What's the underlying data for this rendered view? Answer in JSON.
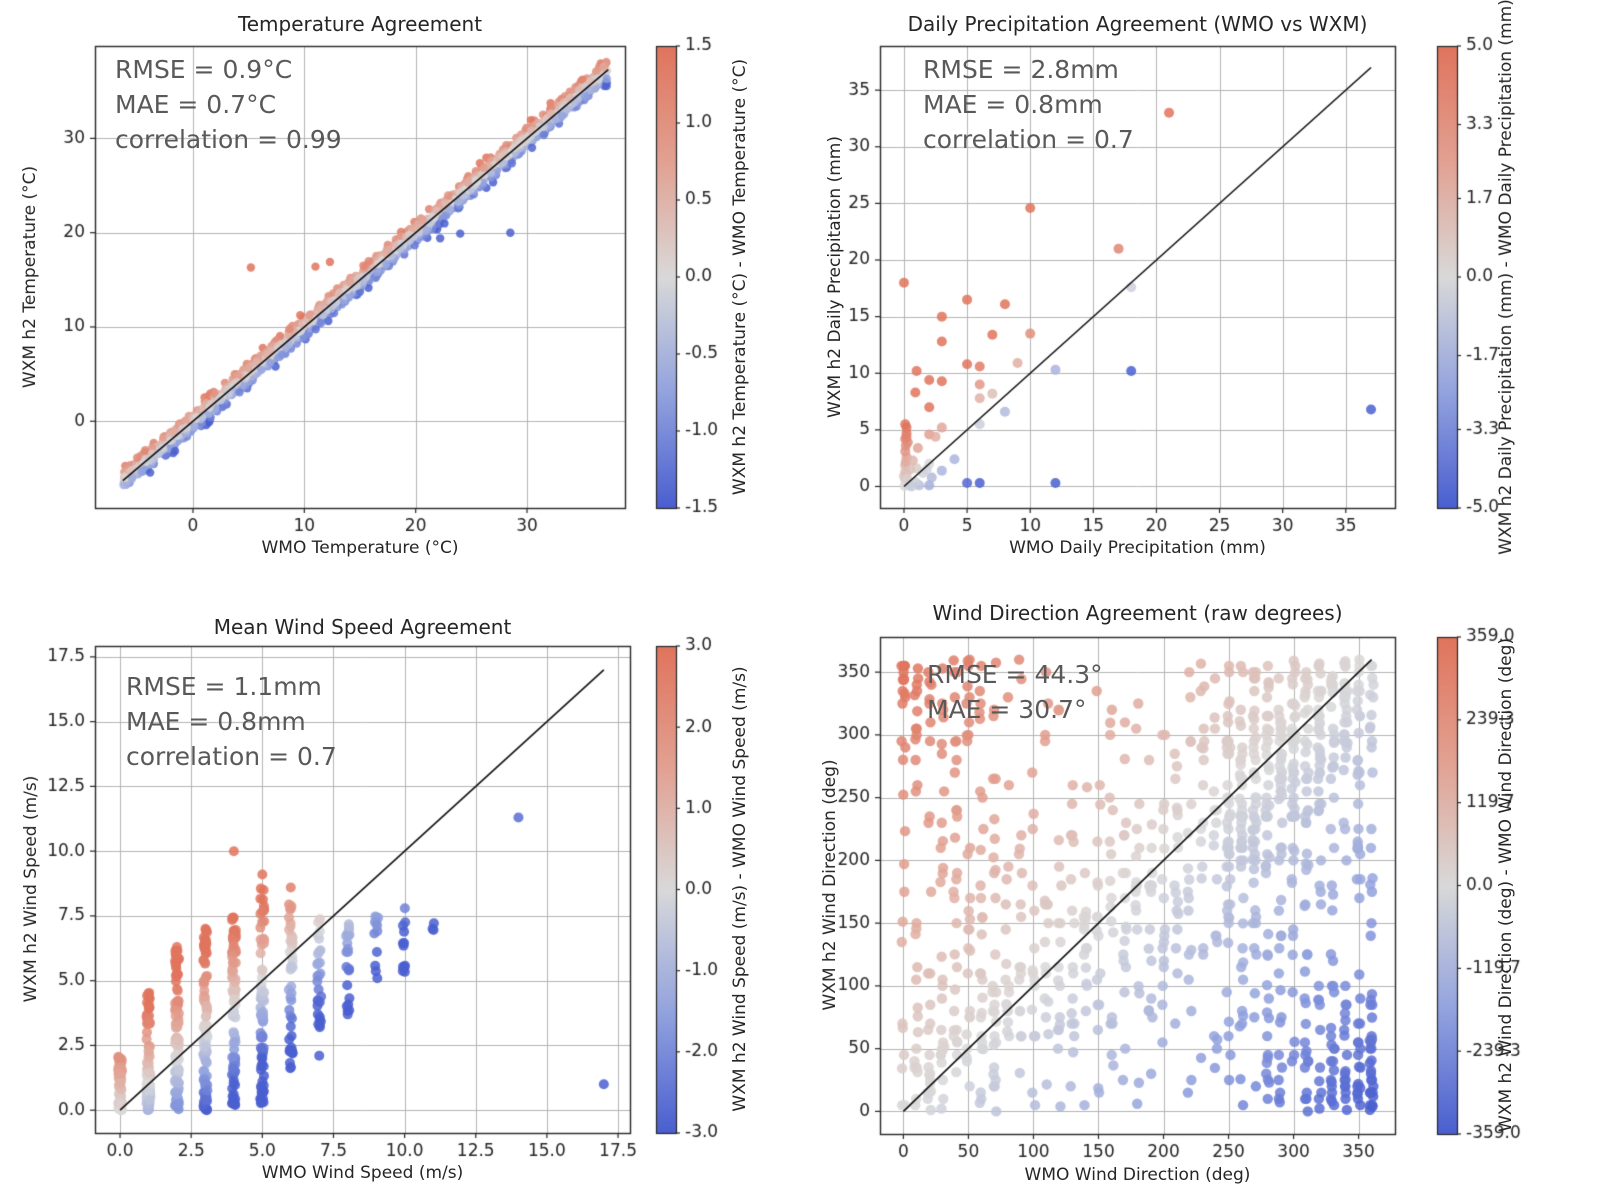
{
  "figure": {
    "background": "#ffffff"
  },
  "colormap": {
    "stops": [
      "#4a5fd0",
      "#93a3de",
      "#d9d9d9",
      "#e2a192",
      "#e0745d"
    ],
    "point_alpha": 0.85
  },
  "chart_data": [
    {
      "type": "scatter",
      "title": "Temperature Agreement",
      "stats": "RMSE = 0.9°C\nMAE = 0.7°C\ncorrelation = 0.99",
      "xlabel": "WMO Temperature (°C)",
      "ylabel": "WXM h2 Temperature (°C)",
      "xlim": [
        -8.8,
        38.8
      ],
      "ylim": [
        -9.2,
        39.8
      ],
      "xticks": {
        "values": [
          0,
          10,
          20,
          30
        ],
        "labels": [
          "0",
          "10",
          "20",
          "30"
        ]
      },
      "yticks": {
        "values": [
          0,
          10,
          20,
          30
        ],
        "labels": [
          "0",
          "10",
          "20",
          "30"
        ]
      },
      "identity_line": [
        [
          -6.3,
          -6.3
        ],
        [
          37.3,
          37.3
        ]
      ],
      "marker_radius": 4.2,
      "colorbar": {
        "vmin": -1.5,
        "vmax": 1.5,
        "tick_values": [
          1.5,
          1.0,
          0.5,
          0.0,
          -0.5,
          -1.0,
          -1.5
        ],
        "tick_labels": [
          "1.5",
          "1.0",
          "0.5",
          "0.0",
          "-0.5",
          "-1.0",
          "-1.5"
        ],
        "label": "WXM h2 Temperature (°C) - WMO Temperature (°C)"
      },
      "points": {
        "mode": "band",
        "seed": 11,
        "n": 2200,
        "x_min": -6.3,
        "x_max": 37.2,
        "noise_sd": 0.55,
        "noise_clip": 1.6,
        "outliers": [
          [
            5.2,
            16.3
          ],
          [
            11.0,
            16.4
          ],
          [
            12.3,
            16.9
          ],
          [
            28.5,
            20.0
          ],
          [
            22.2,
            19.4
          ],
          [
            24.0,
            19.9
          ]
        ]
      }
    },
    {
      "type": "scatter",
      "title": "Daily Precipitation Agreement (WMO vs WXM)",
      "stats": "RMSE = 2.8mm\nMAE = 0.8mm\ncorrelation = 0.7",
      "xlabel": "WMO Daily Precipitation (mm)",
      "ylabel": "WXM h2 Daily Precipitation (mm)",
      "xlim": [
        -1.9,
        38.9
      ],
      "ylim": [
        -1.9,
        38.9
      ],
      "xticks": {
        "values": [
          0,
          5,
          10,
          15,
          20,
          25,
          30,
          35
        ],
        "labels": [
          "0",
          "5",
          "10",
          "15",
          "20",
          "25",
          "30",
          "35"
        ]
      },
      "yticks": {
        "values": [
          0,
          5,
          10,
          15,
          20,
          25,
          30,
          35
        ],
        "labels": [
          "0",
          "5",
          "10",
          "15",
          "20",
          "25",
          "30",
          "35"
        ]
      },
      "identity_line": [
        [
          0,
          0
        ],
        [
          37,
          37
        ]
      ],
      "marker_radius": 5.0,
      "colorbar": {
        "vmin": -5.0,
        "vmax": 5.0,
        "tick_values": [
          5.0,
          3.3,
          1.7,
          0.0,
          -1.7,
          -3.3,
          -5.0
        ],
        "tick_labels": [
          "5.0",
          "3.3",
          "1.7",
          "0.0",
          "-1.7",
          "-3.3",
          "-5.0"
        ],
        "label": "WXM h2 Daily Precipitation (mm) - WMO Daily Precipitation (mm)"
      },
      "points": {
        "mode": "explicit",
        "xy": [
          [
            0,
            18
          ],
          [
            21,
            33
          ],
          [
            10,
            24.6
          ],
          [
            17,
            21
          ],
          [
            5,
            16.5
          ],
          [
            8,
            16.1
          ],
          [
            3,
            15
          ],
          [
            3,
            12.8
          ],
          [
            7,
            13.4
          ],
          [
            10,
            13.5
          ],
          [
            5,
            10.8
          ],
          [
            6,
            10.6
          ],
          [
            9,
            10.9
          ],
          [
            1,
            10.2
          ],
          [
            2,
            9.4
          ],
          [
            3,
            9.3
          ],
          [
            0.9,
            8.3
          ],
          [
            2,
            7
          ],
          [
            18,
            17.6
          ],
          [
            12,
            10.3
          ],
          [
            18,
            10.2
          ],
          [
            37,
            6.8
          ],
          [
            6,
            9
          ],
          [
            6,
            7.8
          ],
          [
            7,
            8.2
          ],
          [
            8,
            6.6
          ],
          [
            6,
            5.5
          ],
          [
            3,
            5.2
          ],
          [
            0.2,
            5.2
          ],
          [
            2,
            4.6
          ],
          [
            2.5,
            4.4
          ],
          [
            4,
            2.4
          ],
          [
            3,
            1.4
          ],
          [
            2,
            2
          ],
          [
            1.1,
            3.4
          ],
          [
            1,
            1.6
          ],
          [
            1.5,
            1.2
          ],
          [
            2.2,
            0.8
          ],
          [
            5,
            0.3
          ],
          [
            6,
            0.3
          ],
          [
            12,
            0.3
          ],
          [
            2,
            0.1
          ],
          [
            1.2,
            0.1
          ],
          [
            0.9,
            0.4
          ],
          [
            0.3,
            0.2
          ],
          [
            0.1,
            0.6
          ],
          [
            0,
            0.9
          ],
          [
            0.2,
            1.1
          ],
          [
            0.1,
            1.9
          ],
          [
            0.2,
            2.6
          ],
          [
            0.1,
            3.1
          ],
          [
            0.15,
            3.6
          ],
          [
            0.1,
            4.2
          ],
          [
            0.2,
            4.7
          ],
          [
            0.05,
            0.05
          ],
          [
            0.4,
            0.1
          ],
          [
            0.6,
            0
          ],
          [
            0.3,
            3.9
          ],
          [
            0.5,
            1.5
          ],
          [
            0.15,
            2.2
          ],
          [
            0.1,
            1.3
          ],
          [
            0.25,
            0.7
          ],
          [
            0.2,
            4.4
          ],
          [
            0.1,
            5.5
          ],
          [
            1.8,
            1.5
          ],
          [
            0.7,
            2.3
          ]
        ]
      }
    },
    {
      "type": "scatter",
      "title": "Mean Wind Speed Agreement",
      "stats": "RMSE = 1.1mm\nMAE = 0.8mm\ncorrelation = 0.7",
      "xlabel": "WMO Wind Speed (m/s)",
      "ylabel": "WXM h2 Wind Speed (m/s)",
      "xlim": [
        -0.88,
        17.92
      ],
      "ylim": [
        -0.88,
        17.92
      ],
      "xticks": {
        "values": [
          0,
          2.5,
          5,
          7.5,
          10,
          12.5,
          15,
          17.5
        ],
        "labels": [
          "0.0",
          "2.5",
          "5.0",
          "7.5",
          "10.0",
          "12.5",
          "15.0",
          "17.5"
        ]
      },
      "yticks": {
        "values": [
          0,
          2.5,
          5,
          7.5,
          10,
          12.5,
          15,
          17.5
        ],
        "labels": [
          "0.0",
          "2.5",
          "5.0",
          "7.5",
          "10.0",
          "12.5",
          "15.0",
          "17.5"
        ]
      },
      "identity_line": [
        [
          0,
          0
        ],
        [
          17,
          17
        ]
      ],
      "marker_radius": 5.0,
      "colorbar": {
        "vmin": -3.0,
        "vmax": 3.0,
        "tick_values": [
          3.0,
          2.0,
          1.0,
          0.0,
          -1.0,
          -2.0,
          -3.0
        ],
        "tick_labels": [
          "3.0",
          "2.0",
          "1.0",
          "0.0",
          "-1.0",
          "-2.0",
          "-3.0"
        ],
        "label": "WXM h2 Wind Speed (m/s) - WMO Wind Speed (m/s)"
      },
      "points": {
        "mode": "columns",
        "seed": 23,
        "x_jitter": 0.07,
        "skew": 1.3,
        "columns": [
          [
            0,
            55,
            0,
            2.1
          ],
          [
            1,
            85,
            0,
            4.6
          ],
          [
            2,
            95,
            0,
            6.2
          ],
          [
            3,
            95,
            0,
            7
          ],
          [
            4,
            85,
            0.2,
            7.5
          ],
          [
            5,
            75,
            0.2,
            8.8
          ],
          [
            6,
            45,
            1.6,
            8
          ],
          [
            7,
            28,
            3.2,
            7.4
          ],
          [
            8,
            20,
            3.8,
            7.6
          ],
          [
            9,
            12,
            5,
            7.6
          ],
          [
            10,
            12,
            5.3,
            7.8
          ],
          [
            11,
            3,
            6.9,
            7.3
          ]
        ],
        "outliers": [
          [
            4,
            10
          ],
          [
            5,
            9.1
          ],
          [
            6,
            8.6
          ],
          [
            14,
            11.3
          ],
          [
            17,
            1
          ],
          [
            8,
            3.7
          ],
          [
            7,
            2.1
          ],
          [
            2,
            6.3
          ],
          [
            1,
            4.5
          ],
          [
            3,
            7
          ]
        ]
      }
    },
    {
      "type": "scatter",
      "title": "Wind Direction Agreement (raw degrees)",
      "stats": "RMSE = 44.3°\nMAE = 30.7°",
      "xlabel": "WMO Wind Direction (deg)",
      "ylabel": "WXM h2 Wind Direction (deg)",
      "xlim": [
        -18,
        378
      ],
      "ylim": [
        -18,
        378
      ],
      "xticks": {
        "values": [
          0,
          50,
          100,
          150,
          200,
          250,
          300,
          350
        ],
        "labels": [
          "0",
          "50",
          "100",
          "150",
          "200",
          "250",
          "300",
          "350"
        ]
      },
      "yticks": {
        "values": [
          0,
          50,
          100,
          150,
          200,
          250,
          300,
          350
        ],
        "labels": [
          "0",
          "50",
          "100",
          "150",
          "200",
          "250",
          "300",
          "350"
        ]
      },
      "identity_line": [
        [
          0,
          0
        ],
        [
          360,
          360
        ]
      ],
      "marker_radius": 5.2,
      "colorbar": {
        "vmin": -359.0,
        "vmax": 359.0,
        "tick_values": [
          359.0,
          239.3,
          119.7,
          0.0,
          -119.7,
          -239.3,
          -359.0
        ],
        "tick_labels": [
          "359.0",
          "239.3",
          "119.7",
          "0.0",
          "-119.7",
          "-239.3",
          "-359.0"
        ],
        "label": "WXM h2 Wind Direction (deg) - WMO Wind Direction (deg)"
      },
      "points": {
        "mode": "wrap_mixture",
        "seed": 7,
        "x_step": 10,
        "x_max": 360,
        "frac_diag": 0.5,
        "diag_sd": 50,
        "snap5_prob": 0.65,
        "x_jitter": 1.5,
        "groups": [
          [
            0,
            70,
            28
          ],
          [
            80,
            240,
            17
          ],
          [
            250,
            360,
            45
          ]
        ]
      }
    }
  ]
}
